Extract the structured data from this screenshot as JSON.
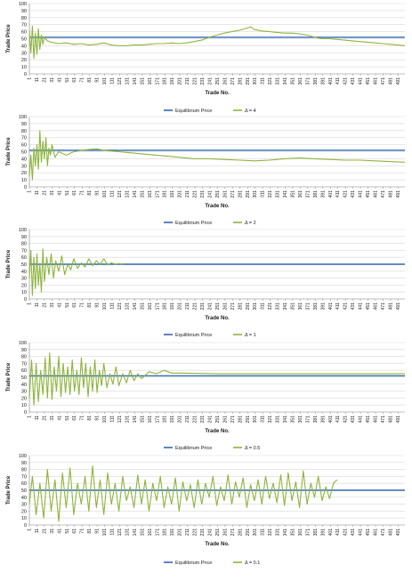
{
  "colors": {
    "equilibrium": "#3366B3",
    "series": "#8DB43C",
    "grid": "#D9D9D9",
    "axis": "#808080",
    "text": "#1a1a1a"
  },
  "chart_data": [
    {
      "type": "line",
      "xlabel": "Trade No.",
      "ylabel": "Trade Price",
      "ylim": [
        0,
        100
      ],
      "yticks": [
        0,
        10,
        20,
        30,
        40,
        50,
        60,
        70,
        80,
        90,
        100
      ],
      "xticks": [
        "1",
        "11",
        "21",
        "31",
        "41",
        "51",
        "61",
        "71",
        "81",
        "91",
        "101",
        "111",
        "121",
        "131",
        "141",
        "151",
        "161",
        "171",
        "181",
        "191",
        "201",
        "211",
        "221",
        "231",
        "241",
        "251",
        "261",
        "271",
        "281",
        "291",
        "301",
        "311",
        "321",
        "331",
        "341",
        "351",
        "361",
        "371",
        "381",
        "391",
        "401",
        "411",
        "421",
        "431",
        "441",
        "451",
        "461",
        "471",
        "481",
        "491"
      ],
      "xrange": [
        1,
        500
      ],
      "grid": true,
      "legend": "bottom",
      "series": [
        {
          "name": "Equilibrium Price",
          "x": [
            1,
            500
          ],
          "values": [
            52,
            52
          ]
        },
        {
          "name": "Δ = 4",
          "x": [
            1,
            3,
            5,
            7,
            9,
            11,
            13,
            15,
            17,
            19,
            21,
            25,
            30,
            40,
            50,
            60,
            70,
            80,
            90,
            100,
            110,
            120,
            130,
            140,
            150,
            160,
            170,
            180,
            190,
            200,
            210,
            220,
            230,
            240,
            250,
            260,
            270,
            280,
            290,
            295,
            300,
            310,
            320,
            330,
            340,
            350,
            360,
            370,
            380,
            390,
            400,
            410,
            420,
            430,
            440,
            450,
            460,
            470,
            480,
            490,
            500
          ],
          "values": [
            62,
            30,
            68,
            22,
            58,
            28,
            64,
            35,
            55,
            42,
            52,
            47,
            45,
            43,
            44,
            42,
            43,
            41,
            42,
            44,
            41,
            40,
            40,
            41,
            41,
            42,
            43,
            43,
            44,
            43,
            44,
            46,
            48,
            52,
            55,
            58,
            60,
            62,
            65,
            67,
            63,
            61,
            60,
            59,
            58,
            58,
            57,
            55,
            52,
            50,
            50,
            49,
            48,
            47,
            46,
            45,
            44,
            43,
            42,
            41,
            40
          ]
        }
      ]
    },
    {
      "type": "line",
      "xlabel": "Trade No.",
      "ylabel": "Trade Price",
      "ylim": [
        0,
        100
      ],
      "yticks": [
        0,
        10,
        20,
        30,
        40,
        50,
        60,
        70,
        80,
        90,
        100
      ],
      "xticks": [
        "1",
        "11",
        "21",
        "31",
        "41",
        "51",
        "61",
        "71",
        "81",
        "91",
        "101",
        "111",
        "121",
        "131",
        "141",
        "151",
        "161",
        "171",
        "181",
        "191",
        "201",
        "211",
        "221",
        "231",
        "241",
        "251",
        "261",
        "271",
        "281",
        "291",
        "301",
        "311",
        "321",
        "331",
        "341",
        "351",
        "361",
        "371",
        "381",
        "391",
        "401",
        "411",
        "421",
        "431",
        "441",
        "451",
        "461",
        "471",
        "481",
        "491"
      ],
      "xrange": [
        1,
        500
      ],
      "grid": true,
      "legend": "bottom",
      "series": [
        {
          "name": "Equilibrium Price",
          "x": [
            1,
            500
          ],
          "values": [
            52,
            52
          ]
        },
        {
          "name": "Δ = 2",
          "x": [
            1,
            3,
            5,
            7,
            9,
            11,
            13,
            15,
            17,
            19,
            21,
            23,
            25,
            27,
            29,
            31,
            35,
            40,
            50,
            60,
            70,
            80,
            90,
            100,
            110,
            120,
            130,
            140,
            150,
            160,
            180,
            200,
            220,
            240,
            260,
            280,
            300,
            320,
            340,
            360,
            380,
            400,
            420,
            440,
            460,
            480,
            500
          ],
          "values": [
            15,
            45,
            10,
            55,
            30,
            60,
            25,
            80,
            35,
            65,
            40,
            70,
            30,
            55,
            45,
            60,
            42,
            50,
            45,
            50,
            52,
            53,
            54,
            52,
            51,
            50,
            49,
            48,
            47,
            46,
            44,
            42,
            40,
            40,
            39,
            38,
            37,
            38,
            40,
            41,
            40,
            39,
            38,
            38,
            37,
            36,
            35
          ]
        }
      ]
    },
    {
      "type": "line",
      "xlabel": "Trade No.",
      "ylabel": "Trade Price",
      "ylim": [
        0,
        100
      ],
      "yticks": [
        0,
        10,
        20,
        30,
        40,
        50,
        60,
        70,
        80,
        90,
        100
      ],
      "xticks": [
        "1",
        "11",
        "21",
        "31",
        "41",
        "51",
        "61",
        "71",
        "81",
        "91",
        "101",
        "111",
        "121",
        "131",
        "141",
        "151",
        "161",
        "171",
        "181",
        "191",
        "201",
        "211",
        "221",
        "231",
        "241",
        "251",
        "261",
        "271",
        "281",
        "291",
        "301",
        "311",
        "321",
        "331",
        "341",
        "351",
        "361",
        "371",
        "381",
        "391",
        "401",
        "411",
        "421",
        "431",
        "441",
        "451",
        "461",
        "471",
        "481",
        "491"
      ],
      "xrange": [
        1,
        500
      ],
      "grid": true,
      "legend": "bottom",
      "series": [
        {
          "name": "Equilibrium Price",
          "x": [
            1,
            500
          ],
          "values": [
            50,
            50
          ]
        },
        {
          "name": "Δ = 1",
          "x": [
            1,
            3,
            5,
            7,
            9,
            11,
            13,
            15,
            17,
            19,
            21,
            24,
            27,
            30,
            33,
            36,
            40,
            44,
            48,
            52,
            56,
            60,
            65,
            70,
            75,
            80,
            85,
            90,
            95,
            100,
            105,
            110,
            115,
            120,
            125
          ],
          "values": [
            30,
            70,
            5,
            60,
            15,
            65,
            20,
            50,
            10,
            72,
            25,
            60,
            35,
            65,
            30,
            55,
            40,
            62,
            35,
            50,
            42,
            58,
            44,
            52,
            46,
            58,
            48,
            55,
            50,
            58,
            49,
            52,
            50,
            51,
            50
          ]
        }
      ]
    },
    {
      "type": "line",
      "xlabel": "Trade No.",
      "ylabel": "Trade Price",
      "ylim": [
        0,
        100
      ],
      "yticks": [
        0,
        10,
        20,
        30,
        40,
        50,
        60,
        70,
        80,
        90,
        100
      ],
      "xticks": [
        "1",
        "11",
        "21",
        "31",
        "41",
        "51",
        "61",
        "71",
        "81",
        "91",
        "101",
        "111",
        "121",
        "131",
        "141",
        "151",
        "161",
        "171",
        "181",
        "191",
        "201",
        "211",
        "221",
        "231",
        "241",
        "251",
        "261",
        "271",
        "281",
        "291",
        "301",
        "311",
        "321",
        "331",
        "341",
        "351",
        "361",
        "371",
        "381",
        "391",
        "401",
        "411",
        "421",
        "431",
        "441",
        "451",
        "461",
        "471",
        "481",
        "491"
      ],
      "xrange": [
        1,
        500
      ],
      "grid": true,
      "legend": "bottom",
      "series": [
        {
          "name": "Equilibrium Price",
          "x": [
            1,
            500
          ],
          "values": [
            52,
            52
          ]
        },
        {
          "name": "Δ = 0.5",
          "x": [
            1,
            4,
            7,
            10,
            13,
            16,
            19,
            22,
            25,
            28,
            31,
            34,
            37,
            40,
            43,
            46,
            49,
            52,
            55,
            58,
            61,
            64,
            67,
            70,
            73,
            76,
            79,
            82,
            85,
            88,
            91,
            94,
            97,
            100,
            104,
            108,
            112,
            116,
            120,
            125,
            130,
            135,
            140,
            145,
            150,
            160,
            170,
            180,
            190,
            200,
            250,
            300,
            350,
            400,
            450,
            500
          ],
          "values": [
            20,
            75,
            10,
            70,
            15,
            60,
            25,
            78,
            20,
            85,
            18,
            65,
            30,
            80,
            22,
            70,
            28,
            65,
            25,
            75,
            30,
            60,
            25,
            78,
            35,
            70,
            22,
            65,
            30,
            75,
            28,
            60,
            38,
            70,
            35,
            55,
            40,
            65,
            38,
            55,
            42,
            60,
            45,
            55,
            48,
            58,
            55,
            60,
            56,
            56,
            55,
            55,
            55,
            55,
            55,
            55
          ]
        }
      ]
    },
    {
      "type": "line",
      "xlabel": "Trade No.",
      "ylabel": "Trade Price",
      "ylim": [
        0,
        100
      ],
      "yticks": [
        0,
        10,
        20,
        30,
        40,
        50,
        60,
        70,
        80,
        90,
        100
      ],
      "xticks": [
        "1",
        "11",
        "21",
        "31",
        "41",
        "51",
        "61",
        "71",
        "81",
        "91",
        "101",
        "111",
        "121",
        "131",
        "141",
        "151",
        "161",
        "171",
        "181",
        "191",
        "201",
        "211",
        "221",
        "231",
        "241",
        "251",
        "261",
        "271",
        "281",
        "291",
        "301",
        "311",
        "321",
        "331",
        "341",
        "351",
        "361",
        "371",
        "381",
        "391",
        "401",
        "411",
        "421",
        "431",
        "441",
        "451",
        "461",
        "471",
        "481",
        "491"
      ],
      "xrange": [
        1,
        500
      ],
      "grid": true,
      "legend": "bottom",
      "series": [
        {
          "name": "Equilibrium Price",
          "x": [
            1,
            500
          ],
          "values": [
            50,
            50
          ]
        },
        {
          "name": "Δ = 0.1",
          "x": [
            1,
            5,
            10,
            15,
            20,
            25,
            30,
            35,
            40,
            45,
            50,
            55,
            60,
            65,
            70,
            75,
            80,
            85,
            90,
            95,
            100,
            105,
            110,
            115,
            120,
            125,
            130,
            135,
            140,
            145,
            150,
            155,
            160,
            165,
            170,
            175,
            180,
            185,
            190,
            195,
            200,
            205,
            210,
            215,
            220,
            225,
            230,
            235,
            240,
            245,
            250,
            255,
            260,
            265,
            270,
            275,
            280,
            285,
            290,
            295,
            300,
            305,
            310,
            315,
            320,
            325,
            330,
            335,
            340,
            345,
            350,
            355,
            360,
            365,
            370,
            375,
            380,
            385,
            390,
            395,
            400,
            405,
            410
          ],
          "values": [
            30,
            70,
            15,
            60,
            10,
            80,
            20,
            65,
            5,
            75,
            25,
            82,
            15,
            60,
            30,
            70,
            20,
            85,
            25,
            65,
            15,
            75,
            30,
            60,
            20,
            70,
            35,
            55,
            25,
            72,
            30,
            65,
            20,
            60,
            35,
            70,
            25,
            55,
            30,
            68,
            20,
            62,
            35,
            58,
            25,
            65,
            30,
            60,
            40,
            70,
            28,
            55,
            35,
            72,
            30,
            62,
            40,
            68,
            25,
            58,
            35,
            65,
            30,
            70,
            38,
            60,
            32,
            72,
            28,
            75,
            35,
            62,
            25,
            78,
            30,
            60,
            40,
            70,
            35,
            55,
            38,
            60,
            65
          ]
        }
      ]
    }
  ]
}
